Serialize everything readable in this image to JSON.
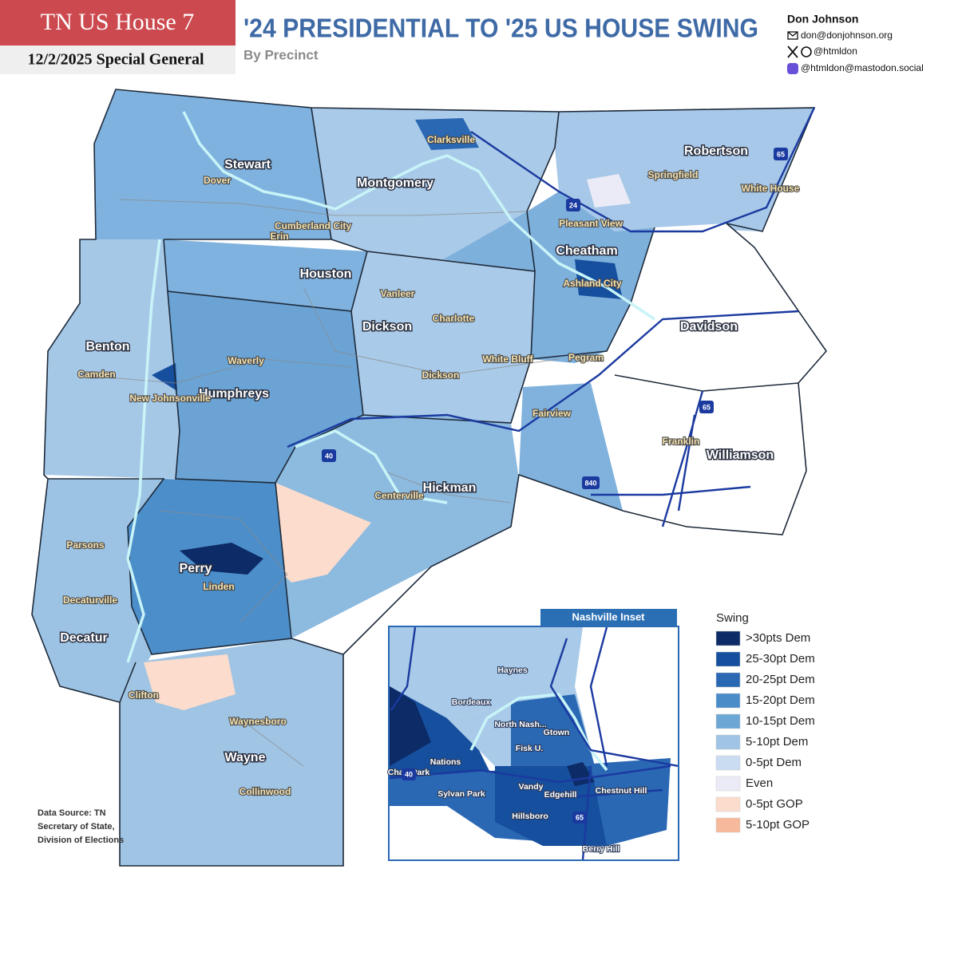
{
  "header": {
    "badge_title": "TN US House 7",
    "badge_subtitle": "12/2/2025 Special General",
    "title": "'24 PRESIDENTIAL TO '25 US HOUSE SWING",
    "subtitle": "By Precinct"
  },
  "author": {
    "name": "Don Johnson",
    "email": "don@donjohnson.org",
    "x_handle": "@htmldon",
    "mastodon": "@htmldon@mastodon.social"
  },
  "map": {
    "counties": [
      "Stewart",
      "Montgomery",
      "Robertson",
      "Houston",
      "Cheatham",
      "Davidson",
      "Dickson",
      "Benton",
      "Humphreys",
      "Hickman",
      "Williamson",
      "Perry",
      "Decatur",
      "Wayne"
    ],
    "cities": [
      "Clarksville",
      "Dover",
      "Springfield",
      "White House",
      "Cumberland City",
      "Pleasant View",
      "Erin",
      "Ashland City",
      "Vanleer",
      "Charlotte",
      "Camden",
      "Waverly",
      "White Bluff",
      "Pegram",
      "Dickson",
      "New Johnsonville",
      "Fairview",
      "Franklin",
      "Centerville",
      "Parsons",
      "Linden",
      "Decaturville",
      "Clifton",
      "Waynesboro",
      "Collinwood"
    ],
    "highways": [
      "24",
      "65",
      "65",
      "40",
      "840"
    ]
  },
  "legend": {
    "title": "Swing",
    "items": [
      {
        "label": ">30pts Dem",
        "color": "#0d2b66"
      },
      {
        "label": "25-30pt Dem",
        "color": "#154f9e"
      },
      {
        "label": "20-25pt Dem",
        "color": "#2a68b4"
      },
      {
        "label": "15-20pt Dem",
        "color": "#4a8cc8"
      },
      {
        "label": "10-15pt Dem",
        "color": "#6ca7d6"
      },
      {
        "label": "5-10pt Dem",
        "color": "#9fc4e4"
      },
      {
        "label": "0-5pt Dem",
        "color": "#c9dcf1"
      },
      {
        "label": "Even",
        "color": "#ebebf7"
      },
      {
        "label": "0-5pt GOP",
        "color": "#fcdccc"
      },
      {
        "label": "5-10pt GOP",
        "color": "#f7b99c"
      }
    ]
  },
  "inset": {
    "title": "Nashville Inset",
    "neighborhoods": [
      "Haynes",
      "Bordeaux",
      "North Nash...",
      "Gtown",
      "Fisk U.",
      "Nations",
      "Charl Park",
      "Sylvan Park",
      "Vandy",
      "Edgehill",
      "Chestnut Hill",
      "Hillsboro",
      "Berry Hill"
    ],
    "highways": [
      "40",
      "65"
    ]
  },
  "source": [
    "Data Source: TN",
    "Secretary of State,",
    "Division of Elections"
  ]
}
